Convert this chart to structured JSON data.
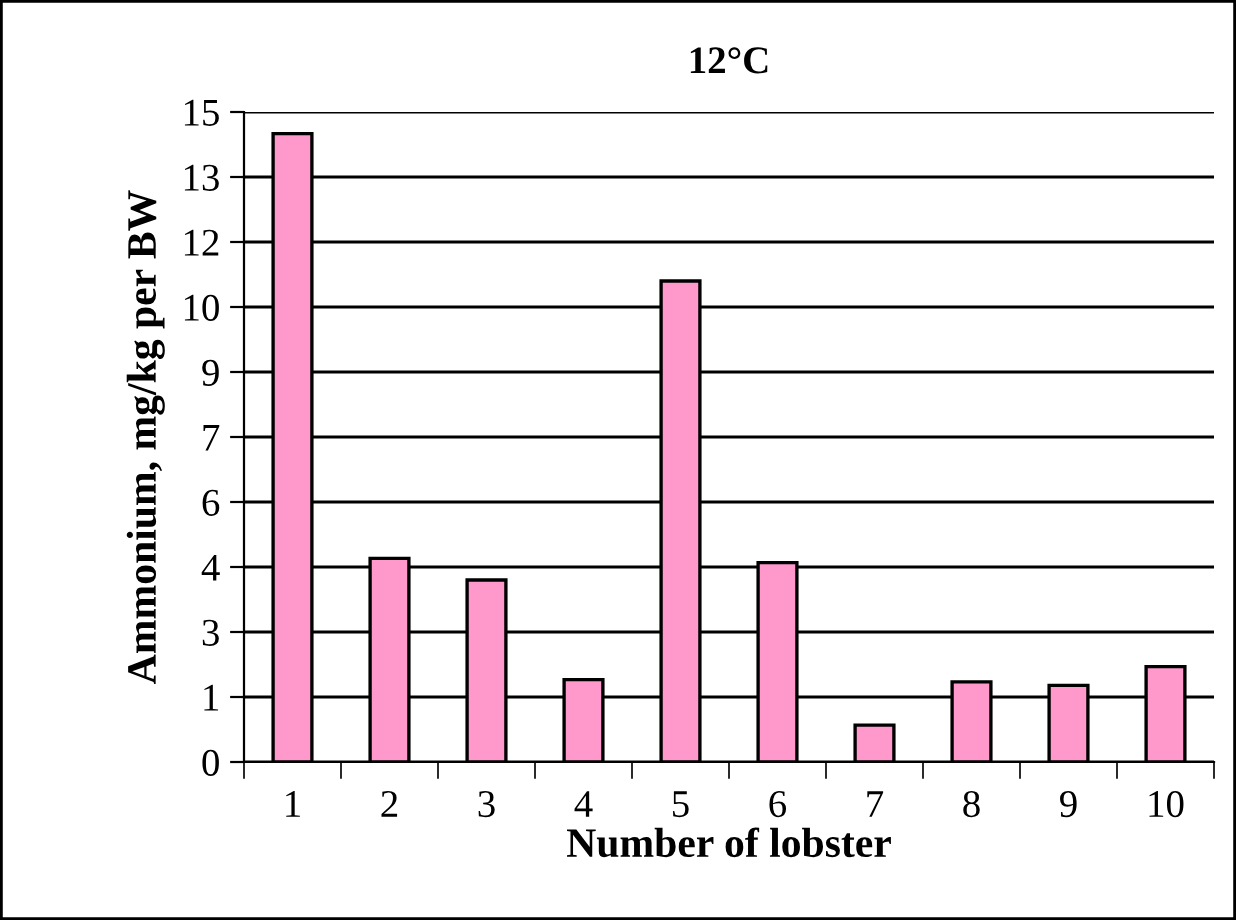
{
  "chart_data": {
    "type": "bar",
    "title": "12°C",
    "xlabel": "Number of lobster",
    "ylabel": "Ammonium, mg/kg per BW",
    "categories": [
      "1",
      "2",
      "3",
      "4",
      "5",
      "6",
      "7",
      "8",
      "9",
      "10"
    ],
    "values": [
      14.5,
      4.7,
      4.2,
      1.9,
      11.1,
      4.6,
      0.85,
      1.85,
      1.77,
      2.2
    ],
    "color": "#ff99cc",
    "ylim": [
      0,
      15
    ],
    "yticks": [
      0,
      {
        "value": 1.5,
        "label": "1"
      },
      3,
      {
        "value": 4.5,
        "label": "4"
      },
      6,
      {
        "value": 7.5,
        "label": "7"
      },
      9,
      {
        "value": 10.5,
        "label": "10"
      },
      12,
      {
        "value": 13.5,
        "label": "13"
      },
      15
    ],
    "grid": "y",
    "legend": false
  }
}
